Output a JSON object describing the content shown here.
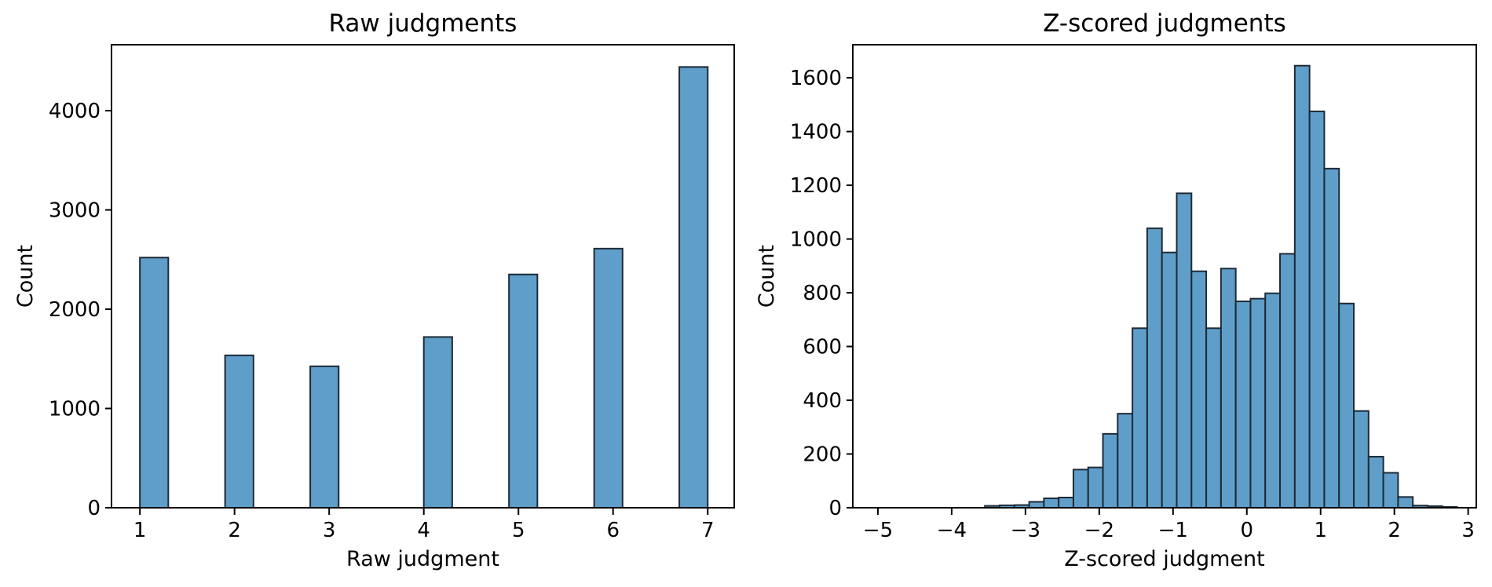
{
  "colors": {
    "background": "#ffffff",
    "bar_fill": "#5f9ec9",
    "bar_edge": "#1e2a36",
    "axis": "#000000",
    "text": "#000000"
  },
  "chart_data": [
    {
      "type": "bar",
      "subtype": "histogram",
      "title": "Raw judgments",
      "xlabel": "Raw judgment",
      "ylabel": "Count",
      "xlim": [
        0.7,
        7.28
      ],
      "ylim": [
        0,
        4664
      ],
      "grid": false,
      "legend": null,
      "bin_width": 0.3,
      "xticks": [
        {
          "value": 1,
          "label": "1"
        },
        {
          "value": 2,
          "label": "2"
        },
        {
          "value": 3,
          "label": "3"
        },
        {
          "value": 4,
          "label": "4"
        },
        {
          "value": 5,
          "label": "5"
        },
        {
          "value": 6,
          "label": "6"
        },
        {
          "value": 7,
          "label": "7"
        }
      ],
      "yticks": [
        {
          "value": 0,
          "label": "0"
        },
        {
          "value": 1000,
          "label": "1000"
        },
        {
          "value": 2000,
          "label": "2000"
        },
        {
          "value": 3000,
          "label": "3000"
        },
        {
          "value": 4000,
          "label": "4000"
        }
      ],
      "bars": [
        {
          "x_left": 1.0,
          "count": 2520
        },
        {
          "x_left": 1.9,
          "count": 1535
        },
        {
          "x_left": 2.8,
          "count": 1425
        },
        {
          "x_left": 4.0,
          "count": 1720
        },
        {
          "x_left": 4.9,
          "count": 2350
        },
        {
          "x_left": 5.8,
          "count": 2610
        },
        {
          "x_left": 6.7,
          "count": 4440
        }
      ]
    },
    {
      "type": "bar",
      "subtype": "histogram",
      "title": "Z-scored judgments",
      "xlabel": "Z-scored judgment",
      "ylabel": "Count",
      "xlim": [
        -5.34,
        3.11
      ],
      "ylim": [
        0,
        1723
      ],
      "grid": false,
      "legend": null,
      "bin_width": 0.2,
      "xticks": [
        {
          "value": -5,
          "label": "−5"
        },
        {
          "value": -4,
          "label": "−4"
        },
        {
          "value": -3,
          "label": "−3"
        },
        {
          "value": -2,
          "label": "−2"
        },
        {
          "value": -1,
          "label": "−1"
        },
        {
          "value": 0,
          "label": "0"
        },
        {
          "value": 1,
          "label": "1"
        },
        {
          "value": 2,
          "label": "2"
        },
        {
          "value": 3,
          "label": "3"
        }
      ],
      "yticks": [
        {
          "value": 0,
          "label": "0"
        },
        {
          "value": 200,
          "label": "200"
        },
        {
          "value": 400,
          "label": "400"
        },
        {
          "value": 600,
          "label": "600"
        },
        {
          "value": 800,
          "label": "800"
        },
        {
          "value": 1000,
          "label": "1000"
        },
        {
          "value": 1200,
          "label": "1200"
        },
        {
          "value": 1400,
          "label": "1400"
        },
        {
          "value": 1600,
          "label": "1600"
        }
      ],
      "bars": [
        {
          "x_left": -3.55,
          "count": 7
        },
        {
          "x_left": -3.35,
          "count": 9
        },
        {
          "x_left": -3.15,
          "count": 10
        },
        {
          "x_left": -2.95,
          "count": 22
        },
        {
          "x_left": -2.75,
          "count": 35
        },
        {
          "x_left": -2.55,
          "count": 38
        },
        {
          "x_left": -2.35,
          "count": 142
        },
        {
          "x_left": -2.15,
          "count": 150
        },
        {
          "x_left": -1.95,
          "count": 275
        },
        {
          "x_left": -1.75,
          "count": 350
        },
        {
          "x_left": -1.55,
          "count": 668
        },
        {
          "x_left": -1.35,
          "count": 1040
        },
        {
          "x_left": -1.15,
          "count": 950
        },
        {
          "x_left": -0.95,
          "count": 1170
        },
        {
          "x_left": -0.75,
          "count": 880
        },
        {
          "x_left": -0.55,
          "count": 668
        },
        {
          "x_left": -0.35,
          "count": 890
        },
        {
          "x_left": -0.15,
          "count": 768
        },
        {
          "x_left": 0.05,
          "count": 778
        },
        {
          "x_left": 0.25,
          "count": 798
        },
        {
          "x_left": 0.45,
          "count": 945
        },
        {
          "x_left": 0.65,
          "count": 1645
        },
        {
          "x_left": 0.85,
          "count": 1475
        },
        {
          "x_left": 1.05,
          "count": 1262
        },
        {
          "x_left": 1.25,
          "count": 760
        },
        {
          "x_left": 1.45,
          "count": 360
        },
        {
          "x_left": 1.65,
          "count": 190
        },
        {
          "x_left": 1.85,
          "count": 130
        },
        {
          "x_left": 2.05,
          "count": 40
        },
        {
          "x_left": 2.25,
          "count": 8
        },
        {
          "x_left": 2.45,
          "count": 6
        },
        {
          "x_left": 2.65,
          "count": 3
        }
      ]
    }
  ]
}
